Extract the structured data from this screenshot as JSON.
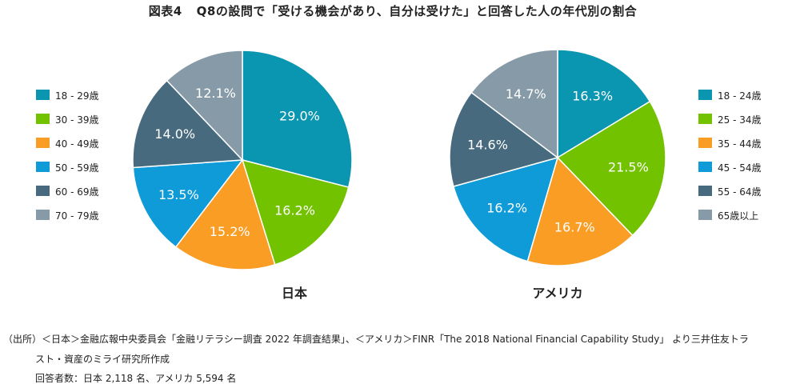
{
  "title": {
    "figure": "図表4",
    "text": "Q8の設問で「受ける機会があり、自分は受けた」と回答した人の年代別の割合"
  },
  "chart_data": [
    {
      "type": "pie",
      "title": "日本",
      "categories": [
        "18 - 29歳",
        "30 - 39歳",
        "40 - 49歳",
        "50 - 59歳",
        "60 - 69歳",
        "70 - 79歳"
      ],
      "values": [
        29.0,
        16.2,
        15.2,
        13.5,
        14.0,
        12.1
      ],
      "labels": [
        "29.0%",
        "16.2%",
        "15.2%",
        "13.5%",
        "14.0%",
        "12.1%"
      ],
      "colors": [
        "#0a96b0",
        "#72c200",
        "#f99d25",
        "#0f9bd7",
        "#476a7e",
        "#869ba7"
      ],
      "legend": "left"
    },
    {
      "type": "pie",
      "title": "アメリカ",
      "categories": [
        "18 - 24歳",
        "25 - 34歳",
        "35 - 44歳",
        "45 - 54歳",
        "55 - 64歳",
        "65歳以上"
      ],
      "values": [
        16.3,
        21.5,
        16.7,
        16.2,
        14.6,
        14.7
      ],
      "labels": [
        "16.3%",
        "21.5%",
        "16.7%",
        "16.2%",
        "14.6%",
        "14.7%"
      ],
      "colors": [
        "#0a96b0",
        "#72c200",
        "#f99d25",
        "#0f9bd7",
        "#476a7e",
        "#869ba7"
      ],
      "legend": "right"
    }
  ],
  "notes": [
    "（出所）＜日本＞金融広報中央委員会「金融リテラシー調査 2022 年調査結果」、＜アメリカ＞FINR「The 2018 National Financial Capability Study」 より三井住友トラ",
    "スト・資産のミライ研究所作成",
    "回答者数：日本 2,118 名、アメリカ 5,594 名"
  ]
}
